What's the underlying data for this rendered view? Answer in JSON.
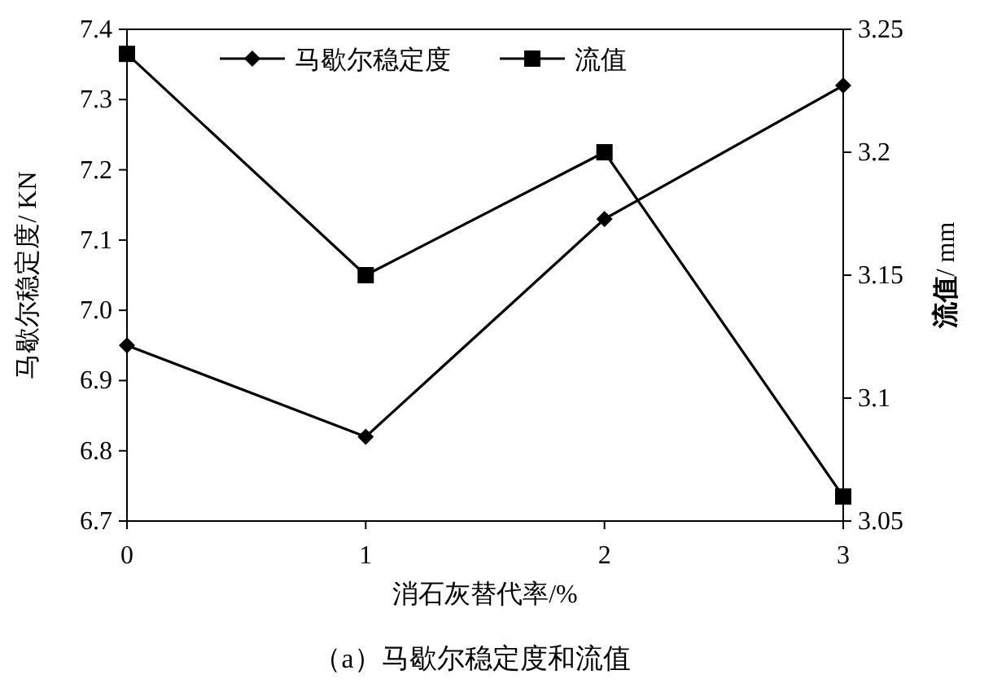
{
  "chart_data": {
    "type": "line",
    "xlabel": "消石灰替代率/%",
    "ylabel": "马歇尔稳定度/ KN",
    "y2label": "**流值**/ mm",
    "x": [
      0,
      1,
      2,
      3
    ],
    "series": [
      {
        "name": "马歇尔稳定度",
        "color": "#000000",
        "marker": "diamond",
        "values": [
          6.95,
          6.82,
          7.13,
          7.32
        ]
      },
      {
        "name": "流值",
        "color": "#000000",
        "marker": "square",
        "axis": "y2",
        "values": [
          3.24,
          3.15,
          3.2,
          3.06
        ]
      }
    ],
    "xlim": [
      0,
      3
    ],
    "xticks": [
      0,
      1,
      2,
      3
    ],
    "ylim": [
      6.7,
      7.4
    ],
    "yticks": [
      6.7,
      6.8,
      6.9,
      {
        "value": 7.0,
        "label": "7.0"
      },
      7.1,
      7.2,
      7.3,
      7.4
    ],
    "y2lim": [
      3.05,
      3.25
    ],
    "y2ticks": [
      3.05,
      3.1,
      3.15,
      3.2,
      3.25
    ],
    "legend": "top",
    "line_style": "solid",
    "annotations": [
      "（a）马歇尔稳定度和流值"
    ]
  }
}
